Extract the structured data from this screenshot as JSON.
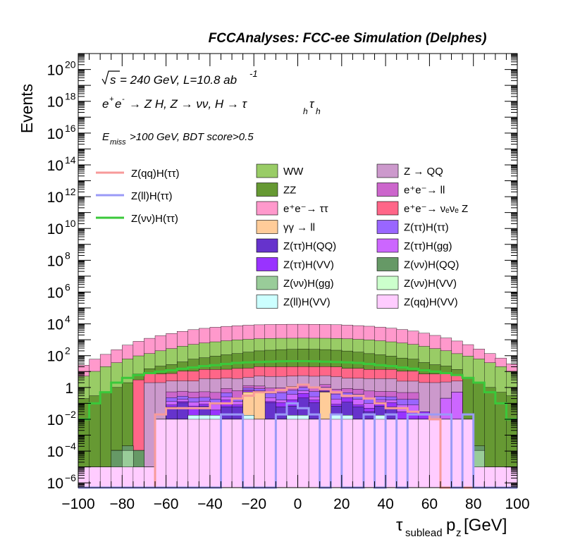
{
  "chart_data": {
    "type": "bar",
    "title": "FCCAnalyses: FCC-ee Simulation (Delphes)",
    "xlabel": "τ_sublead p_z [GeV]",
    "ylabel": "Events",
    "xlim": [
      -100,
      100
    ],
    "ylim_log10": [
      -6.3,
      21.0
    ],
    "y_scale": "log",
    "x_ticks": [
      "−100",
      "−80",
      "−60",
      "−40",
      "−20",
      "0",
      "20",
      "40",
      "60",
      "80",
      "100"
    ],
    "y_ticks": [
      {
        "base": "10",
        "exp": "−6",
        "log": -6
      },
      {
        "base": "10",
        "exp": "−4",
        "log": -4
      },
      {
        "base": "10",
        "exp": "−2",
        "log": -2
      },
      {
        "base": "1",
        "exp": "",
        "log": 0
      },
      {
        "base": "10",
        "exp": "2",
        "log": 2
      },
      {
        "base": "10",
        "exp": "4",
        "log": 4
      },
      {
        "base": "10",
        "exp": "6",
        "log": 6
      },
      {
        "base": "10",
        "exp": "8",
        "log": 8
      },
      {
        "base": "10",
        "exp": "10",
        "log": 10
      },
      {
        "base": "10",
        "exp": "12",
        "log": 12
      },
      {
        "base": "10",
        "exp": "14",
        "log": 14
      },
      {
        "base": "10",
        "exp": "16",
        "log": 16
      },
      {
        "base": "10",
        "exp": "18",
        "log": 18
      },
      {
        "base": "10",
        "exp": "20",
        "log": 20
      }
    ],
    "annotations": {
      "energy": "√s = 240 GeV, L=10.8 ab⁻¹",
      "process": "e⁺e⁻ → Z H, Z → νν, H → τₕτₕ",
      "selection": "E_miss>100 GeV, BDT score>0.5"
    },
    "legend_placement": "top",
    "signal_legend": [
      {
        "name": "Z(qq)H(ττ)",
        "color": "#f79a9a"
      },
      {
        "name": "Z(ll)H(ττ)",
        "color": "#9a9af7"
      },
      {
        "name": "Z(νν)H(ττ)",
        "color": "#3ac83a"
      }
    ],
    "background_legend": [
      {
        "name": "WW",
        "color": "#99cc66"
      },
      {
        "name": "Z → QQ",
        "color": "#cc99cc"
      },
      {
        "name": "ZZ",
        "color": "#669933"
      },
      {
        "name": "e⁺e⁻→ ll",
        "color": "#cc66cc"
      },
      {
        "name": "e⁺e⁻→ ττ",
        "color": "#ff99cc"
      },
      {
        "name": "e⁺e⁻→ νₑνₑ Z",
        "color": "#ff6688"
      },
      {
        "name": "γγ → ll",
        "color": "#ffcc99"
      },
      {
        "name": "Z(ττ)H(ττ)",
        "color": "#9966ff"
      },
      {
        "name": "Z(ττ)H(QQ)",
        "color": "#6633cc"
      },
      {
        "name": "Z(ττ)H(gg)",
        "color": "#cc66ff"
      },
      {
        "name": "Z(ττ)H(VV)",
        "color": "#9933ff"
      },
      {
        "name": "Z(νν)H(QQ)",
        "color": "#669966"
      },
      {
        "name": "Z(νν)H(gg)",
        "color": "#99cc99"
      },
      {
        "name": "Z(νν)H(VV)",
        "color": "#ccffcc"
      },
      {
        "name": "Z(ll)H(VV)",
        "color": "#ccffff"
      },
      {
        "name": "Z(qq)H(VV)",
        "color": "#ffccff"
      }
    ],
    "bin_edges_gev": [
      -100,
      -95,
      -90,
      -85,
      -80,
      -75,
      -70,
      -65,
      -60,
      -55,
      -50,
      -45,
      -40,
      -35,
      -30,
      -25,
      -20,
      -15,
      -10,
      -5,
      0,
      5,
      10,
      15,
      20,
      25,
      30,
      35,
      40,
      45,
      50,
      55,
      60,
      65,
      70,
      75,
      80,
      85,
      90,
      95,
      100
    ],
    "stack_bottom_to_top": {
      "Z(qq)H(VV)": [
        1e-05,
        1e-05,
        1e-05,
        1e-05,
        1e-05,
        1e-05,
        1e-05,
        0.01,
        0.01,
        0.01,
        0.01,
        0.01,
        0.01,
        0.01,
        0.01,
        0.01,
        0.01,
        0.01,
        0.01,
        0.01,
        0.01,
        0.01,
        0.01,
        0.01,
        0.01,
        0.01,
        0.01,
        0.01,
        0.01,
        0.01,
        0.01,
        0.01,
        0.01,
        0.01,
        0.01,
        0.01,
        1e-05,
        1e-05,
        1e-05,
        1e-05
      ],
      "Z(ll)H(VV)": [
        0,
        0,
        0,
        0,
        0,
        0,
        0,
        0,
        0,
        0,
        0.008,
        0.008,
        0.008,
        0,
        0,
        0.008,
        0,
        0,
        0,
        0.008,
        0.008,
        0,
        0,
        0.008,
        0.008,
        0,
        0,
        0.008,
        0,
        0,
        0,
        0,
        0,
        0,
        0,
        0,
        0,
        0,
        0,
        0
      ],
      "Z(νν)H(gg)": [
        0,
        0,
        0,
        0,
        0.0001,
        0,
        0,
        0,
        0,
        0,
        0,
        0,
        0,
        0,
        0,
        0,
        0,
        0,
        0,
        0,
        0,
        0,
        0,
        0,
        0,
        0,
        0,
        0,
        0,
        0,
        0,
        0,
        0,
        0,
        0,
        0,
        0.0001,
        0,
        0,
        0
      ],
      "Z(νν)H(VV)": [
        0,
        0,
        0,
        0,
        0,
        0,
        0,
        0,
        0,
        0,
        0,
        0,
        0,
        0,
        0,
        0,
        0,
        0,
        0,
        0,
        0,
        0,
        0,
        0,
        0,
        0,
        0,
        0,
        0,
        0,
        0,
        0,
        0,
        0,
        0,
        0,
        0,
        0,
        0,
        0
      ],
      "Z(νν)H(QQ)": [
        0,
        0,
        0,
        0.0001,
        0.0001,
        0.0001,
        0,
        0,
        0,
        0,
        0,
        0,
        0,
        0,
        0,
        0,
        0,
        0,
        0,
        0,
        0,
        0,
        0,
        0,
        0,
        0,
        0,
        0,
        0,
        0,
        0,
        0,
        0,
        0,
        0,
        0.0001,
        0.0001,
        0,
        0,
        0
      ],
      "γγ → ll": [
        0,
        0,
        0,
        0,
        0,
        0,
        0,
        0,
        0,
        0,
        0,
        0,
        0,
        0,
        0,
        0.5,
        0.5,
        0,
        0,
        0,
        0,
        0,
        0.5,
        0,
        0,
        0,
        0,
        0,
        0,
        0,
        0,
        0,
        0,
        0,
        0,
        0,
        0,
        0,
        0,
        0
      ],
      "Z(ττ)H(QQ)": [
        0,
        0,
        0,
        0,
        0,
        0,
        0,
        0,
        0.05,
        0.1,
        0,
        0.05,
        0,
        0.05,
        0.05,
        0,
        0.05,
        0.1,
        0.05,
        0.05,
        0.2,
        0.1,
        0.05,
        0.05,
        0.1,
        0.05,
        0.02,
        0.05,
        0.05,
        0,
        0,
        0,
        0,
        0,
        0,
        0,
        0,
        0,
        0,
        0
      ],
      "Z(ττ)H(VV)": [
        0,
        0,
        0,
        0,
        0,
        0,
        0,
        0,
        0.02,
        0.02,
        0.05,
        0.02,
        0.02,
        0.1,
        0.02,
        0.1,
        0.02,
        0.02,
        0.05,
        0.1,
        0.2,
        0.05,
        0.05,
        0.02,
        0.1,
        0.02,
        0.02,
        0.05,
        0.05,
        0.02,
        0.02,
        0.02,
        0,
        0,
        0,
        0,
        0,
        0,
        0,
        0
      ],
      "Z(ττ)H(gg)": [
        0,
        0,
        0,
        0,
        0,
        0,
        0,
        0,
        0.05,
        0.05,
        0.05,
        0.05,
        0.05,
        0.1,
        0.05,
        0.1,
        0.05,
        0.1,
        0.05,
        0.2,
        0.2,
        0.1,
        0.1,
        0.1,
        0.05,
        0.1,
        0.05,
        0.05,
        0.05,
        0.05,
        0.05,
        0,
        0,
        0.2,
        0.5,
        0,
        0,
        0,
        0,
        0
      ],
      "Z(ττ)H(ττ)": [
        0,
        0,
        0,
        0,
        0,
        0,
        0,
        0,
        0.1,
        0.1,
        0.1,
        0.1,
        0.1,
        0.2,
        0.1,
        0.2,
        0.2,
        0.2,
        0.3,
        0.3,
        0.4,
        0.3,
        0.3,
        0.2,
        0.2,
        0.2,
        0.1,
        0.1,
        0.1,
        0.1,
        0.1,
        0,
        0,
        0,
        0,
        0,
        0,
        0,
        0,
        0
      ],
      "e⁺e⁻→ ll": [
        0,
        0,
        0,
        0,
        0,
        0,
        0,
        0,
        0.3,
        0.3,
        0.3,
        0.3,
        0.3,
        0.4,
        0.4,
        0.4,
        0.4,
        0.5,
        0.5,
        0.5,
        0.5,
        0.5,
        0.5,
        0.4,
        0.4,
        0.4,
        0.4,
        0.3,
        0.3,
        0.3,
        0.3,
        0,
        0,
        0,
        0,
        0,
        0,
        0,
        0,
        0
      ],
      "Z → QQ": [
        0,
        0,
        0,
        0,
        0,
        0,
        2,
        2,
        2,
        2,
        2,
        3,
        3,
        3,
        3,
        3,
        4,
        4,
        4,
        4,
        4,
        4,
        4,
        4,
        3,
        3,
        3,
        3,
        3,
        2,
        2,
        2,
        2,
        2,
        2,
        0,
        0,
        0,
        0,
        0
      ],
      "e⁺e⁻→ νₑνₑ Z": [
        0,
        0,
        0,
        0,
        0,
        3,
        5,
        5,
        5,
        8,
        8,
        10,
        10,
        10,
        12,
        12,
        15,
        15,
        15,
        15,
        15,
        15,
        15,
        15,
        12,
        12,
        10,
        10,
        10,
        8,
        8,
        5,
        5,
        5,
        3,
        0,
        0,
        0,
        0,
        0
      ],
      "ZZ": [
        0.2,
        0.3,
        0.5,
        1,
        2,
        4,
        8,
        15,
        20,
        30,
        50,
        60,
        80,
        100,
        120,
        150,
        180,
        200,
        220,
        230,
        240,
        230,
        220,
        200,
        180,
        150,
        120,
        100,
        80,
        60,
        50,
        30,
        20,
        15,
        8,
        4,
        2,
        1,
        0.5,
        0.3
      ],
      "WW": [
        5,
        10,
        20,
        35,
        60,
        90,
        120,
        180,
        250,
        350,
        450,
        550,
        650,
        750,
        850,
        900,
        950,
        1000,
        1000,
        1000,
        1000,
        1000,
        1000,
        1000,
        950,
        900,
        850,
        750,
        650,
        550,
        450,
        350,
        250,
        180,
        120,
        90,
        60,
        35,
        20,
        10
      ],
      "e⁺e⁻→ ττ": [
        20,
        50,
        100,
        200,
        400,
        700,
        1100,
        1600,
        2200,
        3000,
        3800,
        4600,
        5400,
        6100,
        6700,
        7200,
        7600,
        7900,
        8100,
        8200,
        8200,
        8100,
        7900,
        7600,
        7200,
        6700,
        6100,
        5400,
        4600,
        3800,
        3000,
        2200,
        1600,
        1100,
        700,
        400,
        200,
        100,
        50,
        20
      ]
    },
    "signal_histograms": {
      "Z(νν)H(ττ)": [
        0.01,
        0.1,
        0.5,
        2,
        4,
        6,
        8,
        10,
        12,
        15,
        18,
        22,
        25,
        30,
        35,
        38,
        40,
        42,
        44,
        45,
        45,
        44,
        42,
        40,
        38,
        35,
        30,
        25,
        22,
        18,
        15,
        12,
        10,
        8,
        6,
        4,
        2,
        0.5,
        0.1,
        0.01
      ],
      "Z(qq)H(ττ)": [
        0,
        0,
        0,
        0,
        0,
        0,
        0,
        0.02,
        0.05,
        0.05,
        0.05,
        0.05,
        0.1,
        0.1,
        0.2,
        0.3,
        0.5,
        0.5,
        0.7,
        1,
        1.5,
        1,
        0.8,
        0.5,
        0.3,
        0.3,
        0.2,
        0.1,
        0.05,
        0.05,
        0.03,
        0.02,
        0.01,
        0,
        0,
        0,
        0,
        0,
        0,
        0
      ],
      "Z(ll)H(ττ)": [
        0,
        0,
        0,
        0,
        0,
        0,
        0,
        0,
        0,
        0,
        0,
        0,
        0,
        0.02,
        0.02,
        0,
        0,
        0,
        0.02,
        0.1,
        0.05,
        0.02,
        0,
        0.02,
        0,
        0,
        0.02,
        0,
        0.02,
        0,
        0.02,
        0.02,
        0.02,
        0.02,
        0,
        0.02,
        0,
        0,
        0,
        0
      ]
    }
  }
}
